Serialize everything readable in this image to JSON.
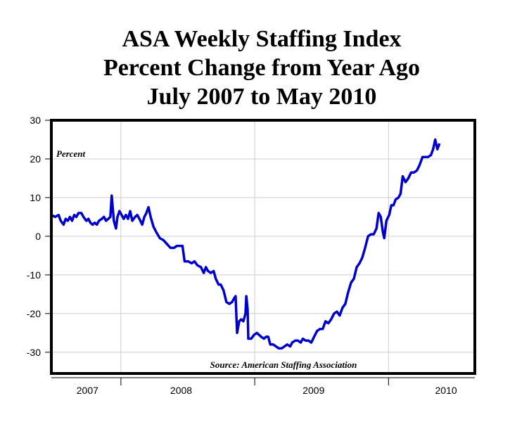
{
  "chart_data": {
    "type": "line",
    "title": [
      "ASA Weekly Staffing Index",
      "Percent Change from Year Ago",
      "July 2007 to May 2010"
    ],
    "y_label": "Percent",
    "source": "Source: American Staffing Association",
    "xlim": [
      2007.48,
      2010.645
    ],
    "ylim": [
      -35.5,
      30
    ],
    "yticks": [
      -30,
      -20,
      -10,
      0,
      10,
      20,
      30
    ],
    "xticks": [
      {
        "value": 2007.75,
        "label": "2007"
      },
      {
        "value": 2008.45,
        "label": "2008"
      },
      {
        "value": 2009.44,
        "label": "2009"
      },
      {
        "value": 2010.43,
        "label": "2010"
      }
    ],
    "xgrid": [
      2008,
      2009,
      2010
    ],
    "grid": true,
    "series": [
      {
        "color": "#0000cc",
        "x": [
          2007.481,
          2007.508,
          2007.534,
          2007.55,
          2007.571,
          2007.587,
          2007.603,
          2007.619,
          2007.635,
          2007.651,
          2007.667,
          2007.683,
          2007.704,
          2007.72,
          2007.741,
          2007.757,
          2007.772,
          2007.788,
          2007.804,
          2007.82,
          2007.836,
          2007.857,
          2007.873,
          2007.889,
          2007.905,
          2007.921,
          2007.931,
          2007.947,
          2007.963,
          2007.974,
          2007.989,
          2008.005,
          2008.021,
          2008.037,
          2008.053,
          2008.069,
          2008.085,
          2008.106,
          2008.122,
          2008.138,
          2008.159,
          2008.175,
          2008.19,
          2008.206,
          2008.222,
          2008.243,
          2008.265,
          2008.291,
          2008.317,
          2008.344,
          2008.37,
          2008.397,
          2008.418,
          2008.439,
          2008.46,
          2008.476,
          2008.503,
          2008.529,
          2008.55,
          2008.571,
          2008.598,
          2008.619,
          2008.635,
          2008.651,
          2008.672,
          2008.693,
          2008.709,
          2008.73,
          2008.746,
          2008.767,
          2008.788,
          2008.81,
          2008.831,
          2008.847,
          2008.857,
          2008.868,
          2008.884,
          2008.899,
          2008.915,
          2008.931,
          2008.937,
          2008.947,
          2008.952,
          2008.974,
          2008.995,
          2009.016,
          2009.032,
          2009.048,
          2009.069,
          2009.085,
          2009.101,
          2009.116,
          2009.138,
          2009.159,
          2009.18,
          2009.201,
          2009.222,
          2009.243,
          2009.265,
          2009.28,
          2009.302,
          2009.323,
          2009.344,
          2009.36,
          2009.381,
          2009.402,
          2009.423,
          2009.444,
          2009.466,
          2009.487,
          2009.508,
          2009.529,
          2009.55,
          2009.571,
          2009.593,
          2009.614,
          2009.635,
          2009.656,
          2009.677,
          2009.698,
          2009.72,
          2009.741,
          2009.762,
          2009.783,
          2009.804,
          2009.825,
          2009.847,
          2009.868,
          2009.889,
          2009.91,
          2009.926,
          2009.942,
          2009.958,
          2009.968,
          2009.984,
          2010.005,
          2010.021,
          2010.037,
          2010.053,
          2010.074,
          2010.09,
          2010.106,
          2010.127,
          2010.148,
          2010.169,
          2010.19,
          2010.212,
          2010.233,
          2010.254,
          2010.275,
          2010.296,
          2010.317,
          2010.333,
          2010.349,
          2010.365,
          2010.381
        ],
        "values": [
          5.5,
          5,
          5.5,
          4,
          3,
          4.5,
          4,
          5,
          4,
          5.5,
          5,
          6,
          6,
          5,
          4,
          4.5,
          3.5,
          3,
          3.5,
          3,
          4,
          4.5,
          5,
          4,
          4.5,
          5,
          10.5,
          4,
          2,
          5,
          6.5,
          5.5,
          4.5,
          5.5,
          4.5,
          6.5,
          4,
          5,
          5.5,
          4.5,
          3,
          5,
          6,
          7.5,
          5,
          2.5,
          1,
          -0.5,
          -1,
          -2,
          -3,
          -3,
          -2.5,
          -2.5,
          -2.5,
          -6.5,
          -6.5,
          -7,
          -6.5,
          -7.5,
          -8,
          -9.5,
          -8,
          -9,
          -9.5,
          -9,
          -11,
          -12.5,
          -12.5,
          -14,
          -17,
          -17.5,
          -17,
          -16,
          -15.5,
          -25,
          -22,
          -21.5,
          -22,
          -20,
          -15.5,
          -19,
          -26.5,
          -26.5,
          -25.5,
          -25,
          -25.5,
          -26,
          -26.5,
          -26,
          -26,
          -28,
          -28,
          -28.5,
          -29,
          -29,
          -28.5,
          -28,
          -28.5,
          -27.5,
          -27,
          -27,
          -27.5,
          -26.5,
          -27,
          -27,
          -27.5,
          -26,
          -24.5,
          -24,
          -24,
          -22,
          -22.5,
          -21.5,
          -20,
          -19.5,
          -20.5,
          -18.5,
          -17.5,
          -14.5,
          -12,
          -11,
          -8,
          -7,
          -5.5,
          -3,
          0,
          0.5,
          0.5,
          2,
          6,
          5,
          1,
          -0.5,
          4,
          5.5,
          8,
          8,
          9.5,
          10,
          11,
          15.5,
          14,
          15,
          16.5,
          16.5,
          17,
          18.5,
          20.5,
          20.5,
          20.5,
          21,
          22.5,
          25,
          22.5,
          24
        ]
      }
    ]
  }
}
